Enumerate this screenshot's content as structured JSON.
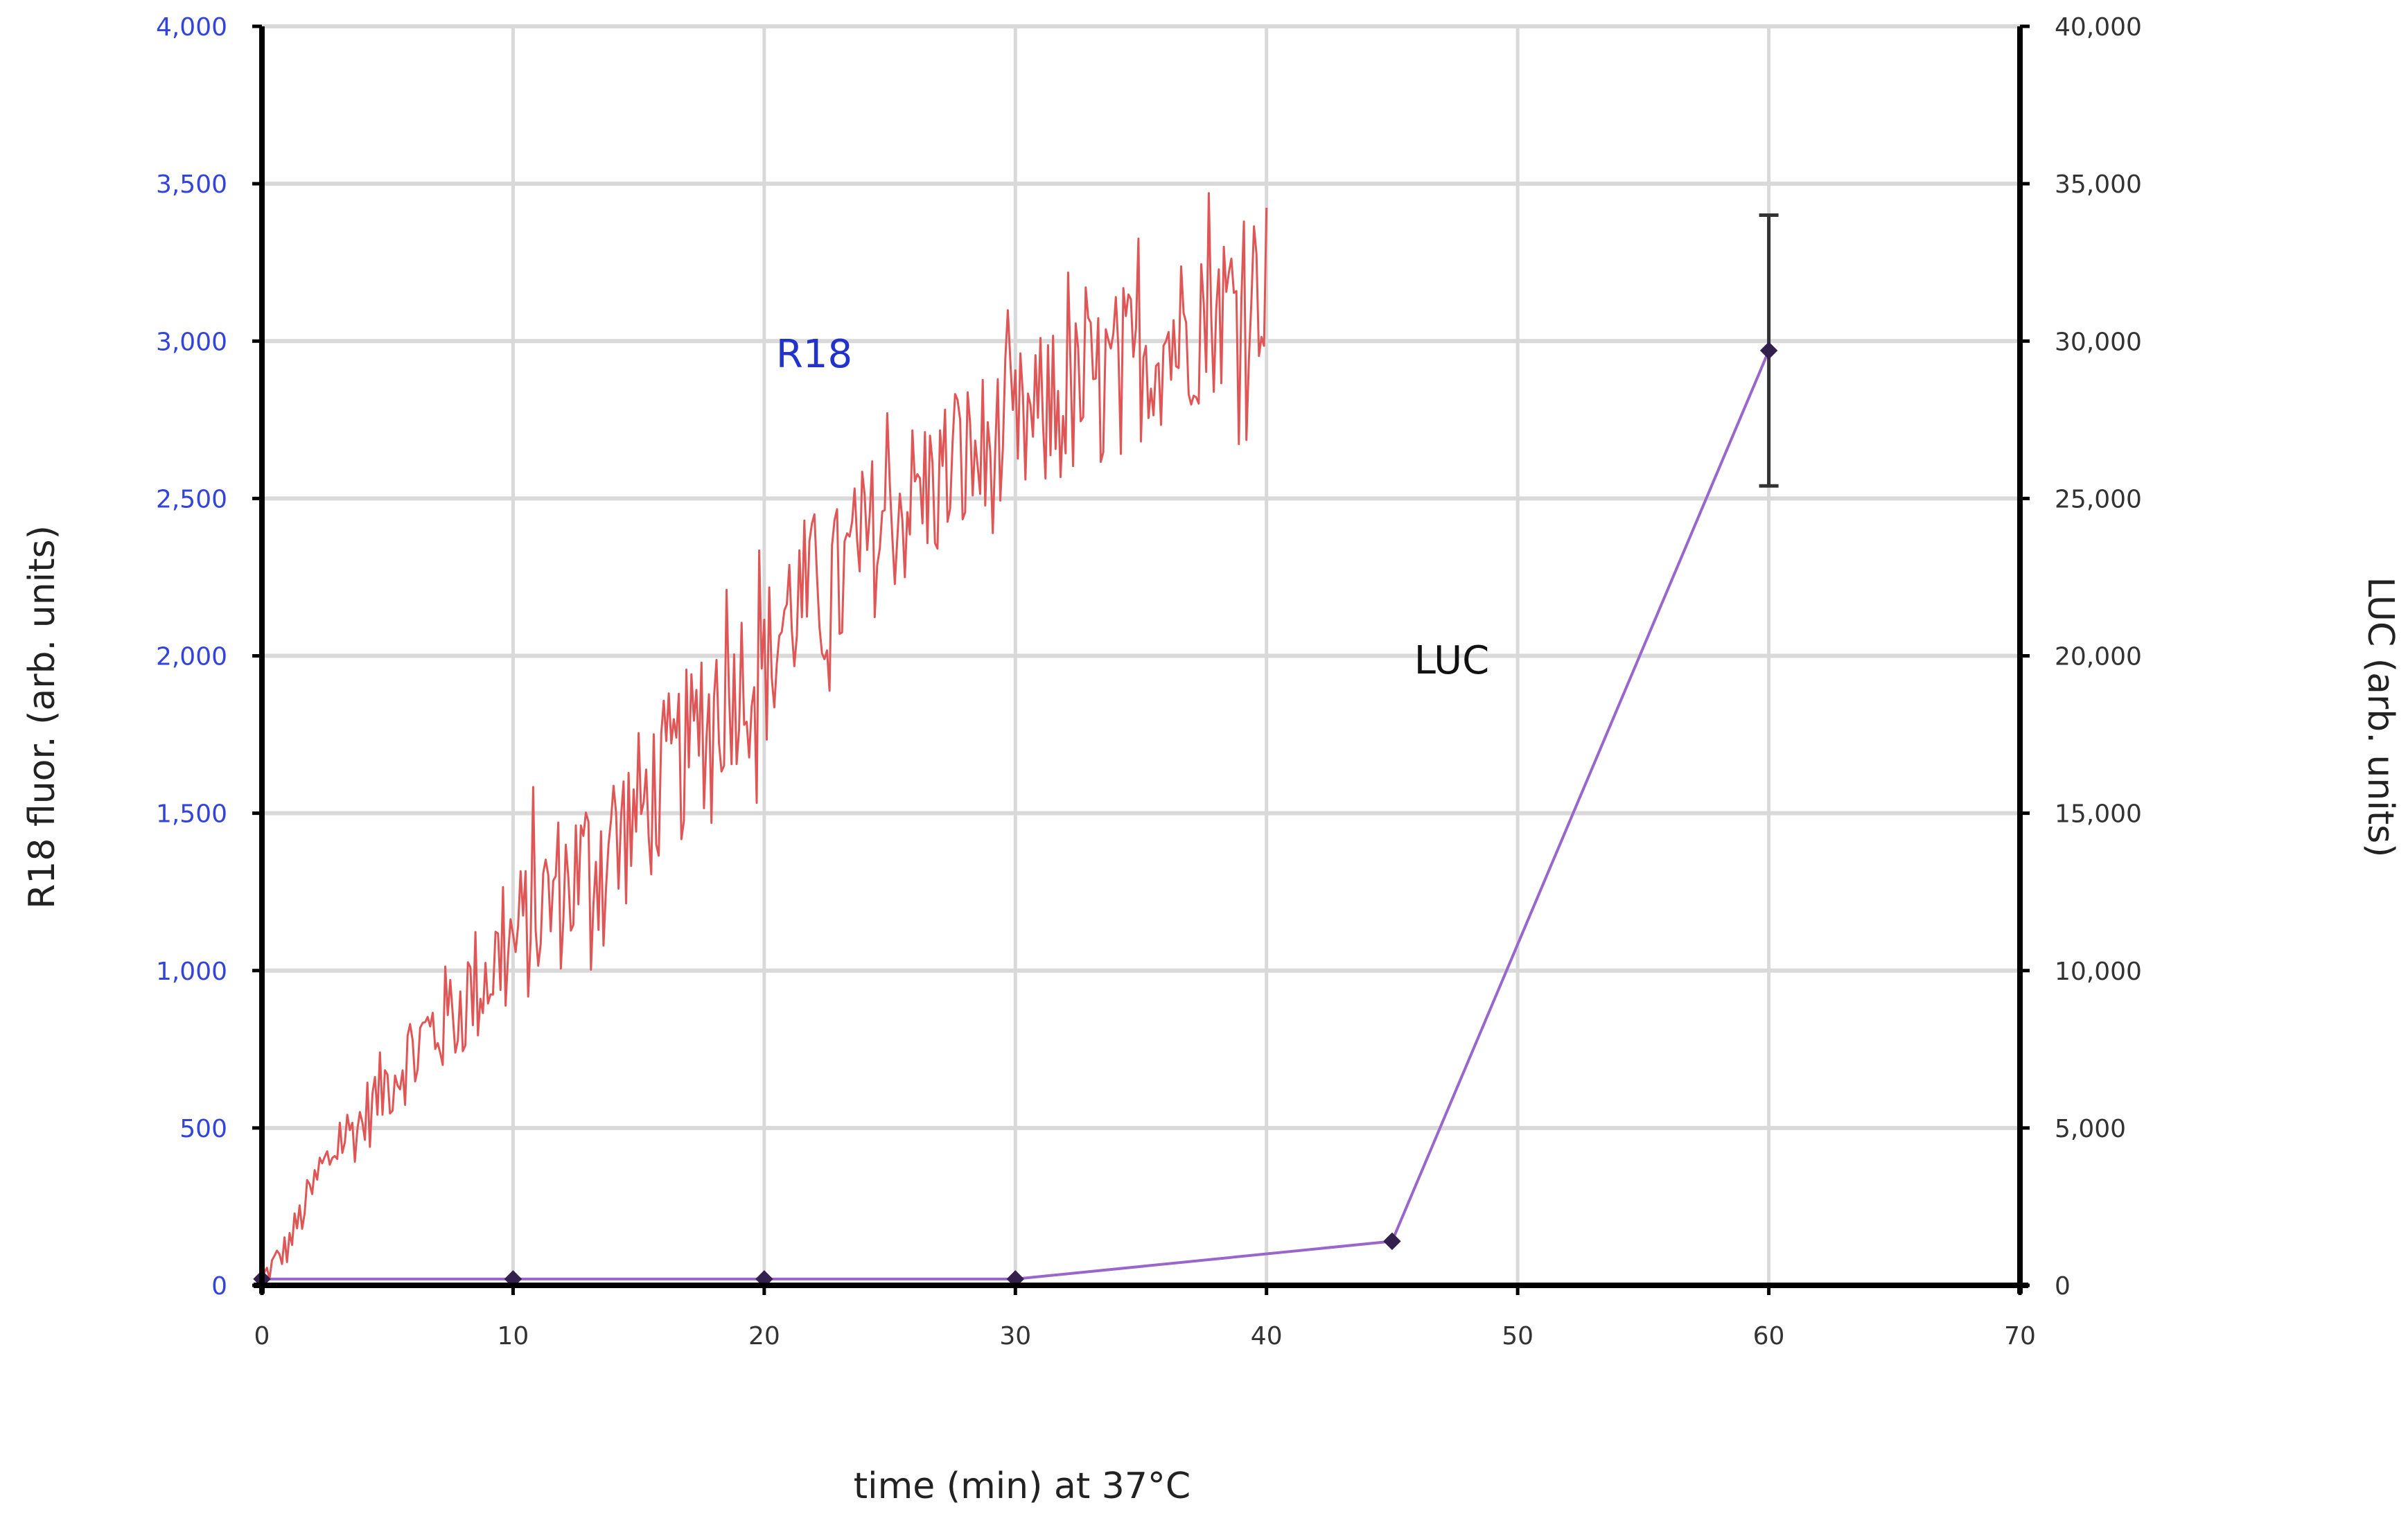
{
  "colors": {
    "left_axis_text": "#3344dd",
    "right_axis_text": "#333333",
    "grid": "#d9d9d9",
    "r18_line": "#e05555",
    "luc_line": "#9966cc",
    "luc_marker": "#33204d",
    "error_bar": "#333333",
    "r18_label": "#2233cc",
    "luc_label": "#111111"
  },
  "chart_data": {
    "type": "line",
    "xlabel": "time (min) at 37°C",
    "ylabel": "R18 fluor. (arb. units)",
    "y2label": "LUC (arb. units)",
    "xlim": [
      0,
      70
    ],
    "ylim": [
      0,
      4000
    ],
    "y2lim": [
      0,
      40000
    ],
    "x_ticks": [
      "0",
      "10",
      "20",
      "30",
      "40",
      "50",
      "60",
      "70"
    ],
    "y_ticks": [
      "0",
      "500",
      "1,000",
      "1,500",
      "2,000",
      "2,500",
      "3,000",
      "3,500",
      "4,000"
    ],
    "y2_ticks": [
      "0",
      "5,000",
      "10,000",
      "15,000",
      "20,000",
      "25,000",
      "30,000",
      "35,000",
      "40,000"
    ],
    "grid": true,
    "series": [
      {
        "name": "R18",
        "axis": "left",
        "style": "noisy line",
        "x": [
          0,
          1,
          2,
          3,
          4,
          5,
          6,
          7,
          8,
          9,
          10,
          11,
          12,
          13,
          14,
          15,
          16,
          17,
          18,
          19,
          20,
          21,
          22,
          23,
          24,
          25,
          26,
          27,
          28,
          29,
          30,
          31,
          32,
          33,
          34,
          35,
          36,
          37,
          38,
          39,
          40
        ],
        "values": [
          20,
          120,
          300,
          450,
          520,
          650,
          750,
          820,
          900,
          1000,
          1080,
          1180,
          1270,
          1330,
          1420,
          1500,
          1600,
          1700,
          1820,
          1930,
          1950,
          2150,
          2200,
          2220,
          2350,
          2450,
          2500,
          2560,
          2620,
          2650,
          2700,
          2750,
          2800,
          2850,
          2900,
          2950,
          3000,
          3050,
          3100,
          3150,
          3200
        ],
        "min": 0,
        "max": 3750
      },
      {
        "name": "LUC",
        "axis": "right",
        "style": "line with markers",
        "x": [
          0,
          10,
          20,
          30,
          45,
          60
        ],
        "values": [
          200,
          200,
          200,
          200,
          1400,
          29700
        ],
        "error": [
          0,
          0,
          0,
          0,
          0,
          4300
        ]
      }
    ]
  }
}
